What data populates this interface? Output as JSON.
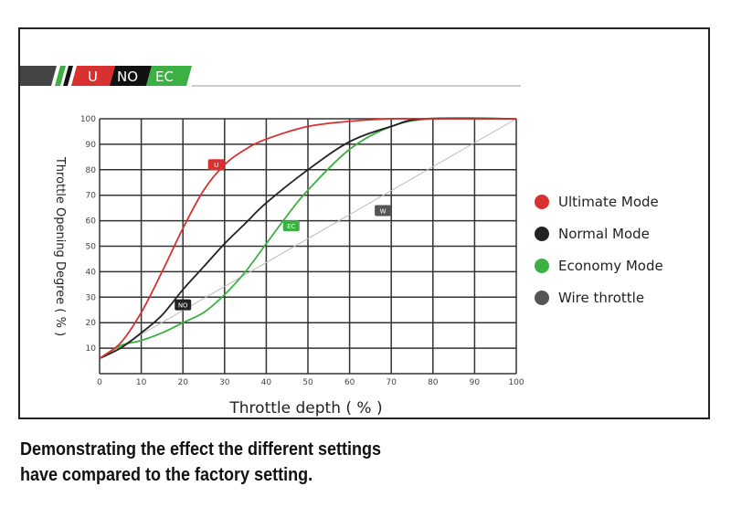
{
  "logo": {
    "parts": [
      "U",
      "NO",
      "EC"
    ]
  },
  "caption": [
    "Demonstrating the effect the different settings",
    "have compared to the factory setting."
  ],
  "chart_data": {
    "type": "line",
    "xlabel": "Throttle depth ( % )",
    "ylabel": "Throttle Opening Degree ( % )",
    "xlim": [
      0,
      100
    ],
    "ylim": [
      0,
      100
    ],
    "xticks": [
      0,
      10,
      20,
      30,
      40,
      50,
      60,
      70,
      80,
      90,
      100
    ],
    "yticks": [
      10,
      20,
      30,
      40,
      50,
      60,
      70,
      80,
      90,
      100
    ],
    "grid": true,
    "legend_position": "right",
    "series": [
      {
        "name": "Ultimate Mode",
        "tag": "U",
        "color": "#d93030",
        "tag_at": [
          28,
          82
        ],
        "x": [
          0,
          5,
          10,
          15,
          20,
          25,
          30,
          35,
          40,
          50,
          60,
          70,
          80,
          100
        ],
        "y": [
          6,
          12,
          24,
          40,
          57,
          72,
          82,
          88,
          92,
          97,
          99,
          100,
          100,
          100
        ]
      },
      {
        "name": "Normal Mode",
        "tag": "NO",
        "color": "#222222",
        "tag_at": [
          20,
          27
        ],
        "x": [
          0,
          5,
          10,
          15,
          20,
          25,
          30,
          35,
          40,
          50,
          60,
          70,
          78,
          100
        ],
        "y": [
          6,
          10,
          16,
          23,
          33,
          42,
          51,
          59,
          67,
          80,
          91,
          97,
          100,
          100
        ]
      },
      {
        "name": "Economy Mode",
        "tag": "EC",
        "color": "#3cb043",
        "tag_at": [
          46,
          58
        ],
        "x": [
          0,
          5,
          10,
          15,
          20,
          25,
          30,
          35,
          40,
          45,
          50,
          60,
          70,
          80,
          100
        ],
        "y": [
          6,
          11,
          13,
          16,
          20,
          24,
          31,
          40,
          51,
          62,
          72,
          88,
          97,
          100,
          100
        ]
      },
      {
        "name": "Wire throttle",
        "tag": "W",
        "color": "#bbbbbb",
        "tag_at": [
          68,
          64
        ],
        "x": [
          0,
          100
        ],
        "y": [
          6,
          100
        ]
      }
    ]
  }
}
